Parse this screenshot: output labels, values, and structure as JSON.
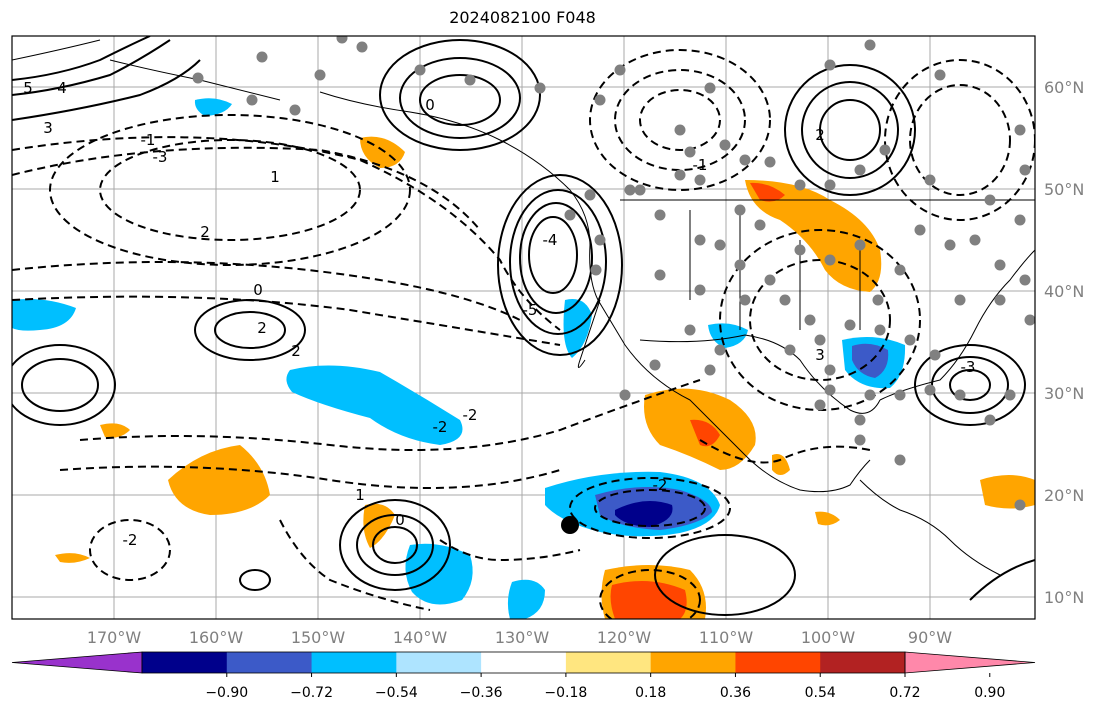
{
  "title": "2024082100 F048",
  "map": {
    "lon_labels": [
      "170°W",
      "160°W",
      "150°W",
      "140°W",
      "130°W",
      "120°W",
      "110°W",
      "100°W",
      "90°W"
    ],
    "lat_labels": [
      "60°N",
      "50°N",
      "40°N",
      "30°N",
      "20°N",
      "10°N"
    ],
    "contour_labels": [
      "5",
      "4",
      "3",
      "2",
      "1",
      "0",
      "-1",
      "-2",
      "-3",
      "-4",
      "-5",
      "0",
      "2",
      "2",
      "1",
      "0",
      "-2",
      "-2",
      "-2",
      "-1",
      "2",
      "3",
      "-3"
    ]
  },
  "colorbar": {
    "tick_labels": [
      "−0.90",
      "−0.72",
      "−0.54",
      "−0.36",
      "−0.18",
      "0.18",
      "0.36",
      "0.54",
      "0.72",
      "0.90"
    ],
    "colors": [
      "#9932cc",
      "#00008b",
      "#3c5ac8",
      "#00bfff",
      "#aee4ff",
      "#ffffff",
      "#ffe680",
      "#ffa500",
      "#ff4500",
      "#b22222",
      "#ff88aa"
    ]
  }
}
